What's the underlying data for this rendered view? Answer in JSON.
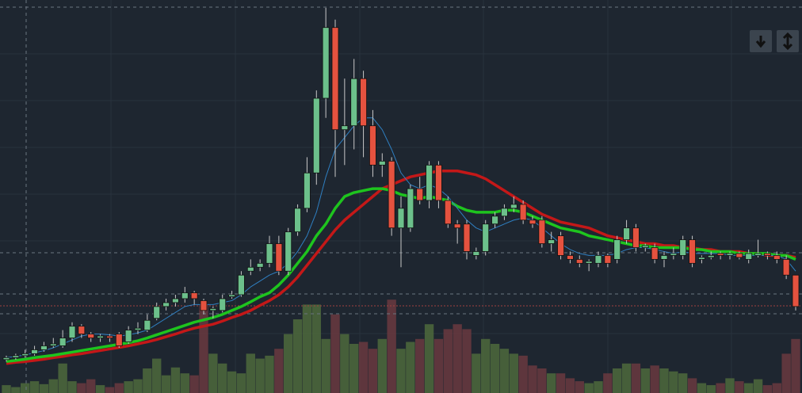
{
  "chart_data": {
    "type": "candlestick",
    "categories": [
      null,
      null,
      null,
      null,
      null,
      null,
      null,
      null,
      null,
      null,
      null,
      null,
      null,
      null,
      null,
      null,
      null,
      null,
      null,
      null,
      null,
      null,
      null,
      null,
      null,
      null,
      null,
      null,
      null,
      null,
      null,
      null,
      null,
      null,
      null,
      null,
      null,
      null,
      null,
      null,
      null,
      null,
      null,
      null,
      null,
      null,
      null,
      null,
      null,
      null,
      null,
      null,
      null,
      null,
      null,
      null,
      null,
      null,
      null,
      null,
      null,
      null,
      null,
      null,
      null,
      null,
      null,
      null,
      null,
      null,
      null,
      null,
      null,
      null,
      null,
      null,
      null,
      null,
      null,
      null,
      null,
      null,
      null,
      null,
      null
    ],
    "open": [
      8.5,
      9,
      9.5,
      10,
      11,
      12,
      12,
      14,
      17,
      15,
      14,
      14.5,
      15,
      13,
      16,
      16,
      19,
      22,
      23,
      24,
      25.5,
      23.5,
      21,
      21,
      24.5,
      25,
      31,
      32,
      33,
      38,
      31,
      41,
      47,
      56,
      75,
      93,
      67,
      68,
      80,
      68,
      58,
      59,
      42,
      42,
      52,
      49,
      58,
      49,
      43,
      43,
      35,
      36,
      43,
      45,
      47,
      48,
      44,
      44,
      38,
      40,
      35,
      34,
      33,
      33,
      35,
      34,
      39,
      42,
      37,
      37,
      34,
      35,
      35,
      39,
      34,
      34.5,
      35.5,
      35,
      35.5,
      34,
      35,
      35.5,
      35,
      34,
      30
    ],
    "high": [
      9.5,
      10,
      11,
      12,
      13,
      14,
      16,
      18,
      17.5,
      15.5,
      15,
      15,
      15.5,
      17,
      18,
      20,
      23,
      24,
      25,
      27,
      26,
      24,
      22,
      25,
      26,
      31,
      34,
      34,
      40,
      40,
      42,
      48,
      60,
      77,
      98,
      95,
      80,
      85,
      82,
      72,
      61,
      60,
      50,
      53,
      55,
      59,
      59,
      50,
      44,
      44,
      37,
      44,
      46,
      48,
      50,
      49,
      45,
      45,
      41,
      41,
      36,
      35,
      34,
      36,
      35.5,
      40,
      44,
      43,
      38,
      38,
      36,
      37,
      40,
      40,
      35,
      36,
      36,
      36,
      36,
      36.5,
      39,
      36,
      36,
      35,
      30
    ],
    "low": [
      8,
      8.5,
      9,
      9.5,
      10.5,
      11.5,
      11.5,
      13,
      14,
      13,
      13,
      13,
      11.5,
      12.5,
      15,
      15.5,
      18.5,
      21,
      22,
      23,
      22.5,
      20,
      19,
      20.5,
      24,
      24.5,
      30,
      31,
      32,
      30,
      30,
      40,
      46,
      53,
      70,
      55,
      58,
      62,
      60,
      55,
      55,
      40,
      32,
      41,
      48,
      47,
      47,
      42,
      38,
      34,
      34,
      35,
      42,
      44,
      46,
      43,
      42,
      37,
      36,
      34,
      33,
      32,
      31,
      32,
      32,
      33,
      38,
      36,
      36,
      33,
      32,
      34,
      34,
      32,
      33,
      34,
      34,
      34,
      34,
      33,
      34.5,
      34,
      33,
      29,
      21
    ],
    "close": [
      9,
      9.5,
      10,
      11,
      12,
      12.5,
      14,
      17,
      15,
      14,
      14.5,
      14,
      12,
      16,
      16.5,
      18.5,
      22,
      23,
      24,
      25.5,
      24,
      21,
      21.5,
      24,
      25,
      30,
      32,
      33,
      38,
      31,
      41,
      47,
      56,
      75,
      93,
      67,
      68,
      80,
      68,
      58,
      59,
      42,
      47,
      52,
      49,
      58,
      49,
      43,
      42,
      36,
      36,
      43,
      45,
      47,
      48,
      44,
      43,
      38,
      39,
      35,
      34,
      33,
      33.5,
      35,
      33,
      39,
      42,
      37,
      37.5,
      34,
      35,
      35.5,
      39,
      33,
      34.5,
      35,
      35,
      35.5,
      34.5,
      35.5,
      35.5,
      35,
      34,
      30,
      22
    ],
    "up_color": "#6cc08b",
    "down_color": "#e5523f",
    "ylim": [
      0,
      100
    ],
    "y2lim": [
      0,
      400
    ],
    "volume": {
      "axis": "y2",
      "up_color": "#4e6a3c",
      "down_color": "#6a3a40",
      "values": [
        8,
        6,
        10,
        12,
        9,
        14,
        30,
        12,
        10,
        14,
        8,
        6,
        10,
        12,
        14,
        25,
        35,
        18,
        26,
        20,
        18,
        90,
        40,
        30,
        22,
        20,
        40,
        35,
        38,
        45,
        60,
        75,
        90,
        90,
        55,
        80,
        60,
        50,
        52,
        45,
        55,
        95,
        45,
        52,
        55,
        70,
        55,
        65,
        70,
        65,
        40,
        55,
        50,
        45,
        40,
        38,
        28,
        25,
        20,
        20,
        15,
        12,
        10,
        12,
        20,
        25,
        30,
        30,
        25,
        28,
        25,
        22,
        20,
        15,
        10,
        8,
        10,
        15,
        12,
        10,
        14,
        8,
        10,
        40,
        55
      ]
    },
    "series": [
      {
        "color": "#c41818",
        "width": 3.5,
        "values": [
          7.5,
          7.8,
          8,
          8.3,
          8.6,
          9,
          9.3,
          9.7,
          10,
          10.4,
          10.8,
          11.2,
          11.6,
          12,
          12.5,
          13,
          13.6,
          14.3,
          15,
          15.8,
          16.5,
          17,
          17.5,
          18.3,
          19.2,
          20,
          21,
          22.3,
          23.5,
          25,
          27,
          29.5,
          32.5,
          35.5,
          38.5,
          41.5,
          44,
          46,
          48,
          50,
          52,
          53,
          54,
          55,
          55.5,
          56,
          56.5,
          56.5,
          56.5,
          56,
          55.5,
          54.5,
          53,
          51.5,
          50,
          48.5,
          47,
          45.5,
          44.5,
          43.5,
          43,
          42.5,
          42,
          41,
          40,
          39.5,
          39,
          38.5,
          38,
          38,
          37.5,
          37.5,
          37,
          37,
          36.5,
          36.5,
          36,
          36,
          36,
          35.5,
          35.5,
          35,
          35,
          35,
          34.5
        ]
      },
      {
        "color": "#1ec41e",
        "width": 3.5,
        "values": [
          8,
          8.3,
          8.6,
          9,
          9.3,
          9.6,
          10,
          10.4,
          10.8,
          11.2,
          11.6,
          12,
          12.4,
          12.8,
          13.3,
          14,
          14.8,
          15.6,
          16.4,
          17.2,
          18,
          18.6,
          19.2,
          20,
          21,
          22,
          23.2,
          24.5,
          25.5,
          27.5,
          30,
          33,
          36,
          40,
          43,
          47,
          50,
          51,
          51.5,
          52,
          52,
          51.5,
          50.5,
          50,
          49.5,
          50,
          49.5,
          49,
          47.5,
          46.5,
          46,
          46,
          46,
          46.5,
          46.5,
          46,
          45,
          44,
          43,
          42,
          41.5,
          41,
          40,
          39.5,
          39,
          38.5,
          38,
          37.5,
          37.5,
          37,
          37,
          37,
          37,
          36.5,
          36.5,
          36,
          36,
          36,
          35.5,
          35.5,
          35.5,
          35.5,
          35,
          35,
          34
        ]
      },
      {
        "color": "#2f7fc1",
        "width": 1,
        "values": [
          9,
          9.3,
          9.7,
          10.2,
          10.8,
          11.5,
          12.5,
          13.5,
          14.5,
          15,
          15,
          14.8,
          14.5,
          14.8,
          15.3,
          16,
          17.5,
          19,
          20.5,
          22,
          22.5,
          22.5,
          22.5,
          23,
          23.5,
          25,
          27,
          28.5,
          30,
          31,
          33,
          36,
          40,
          46,
          55,
          62,
          65,
          68,
          70,
          70,
          67,
          62,
          56,
          53,
          52,
          53,
          52,
          50,
          47,
          44,
          42,
          41,
          42,
          43,
          44,
          44.5,
          44,
          42,
          40,
          38,
          36.5,
          35.5,
          35,
          35,
          35,
          35.5,
          36.5,
          37,
          37,
          36.5,
          36,
          35.5,
          36,
          35.5,
          35.5,
          35.5,
          35.5,
          35,
          35,
          35,
          35,
          35,
          35,
          34,
          31
        ]
      }
    ]
  }
}
